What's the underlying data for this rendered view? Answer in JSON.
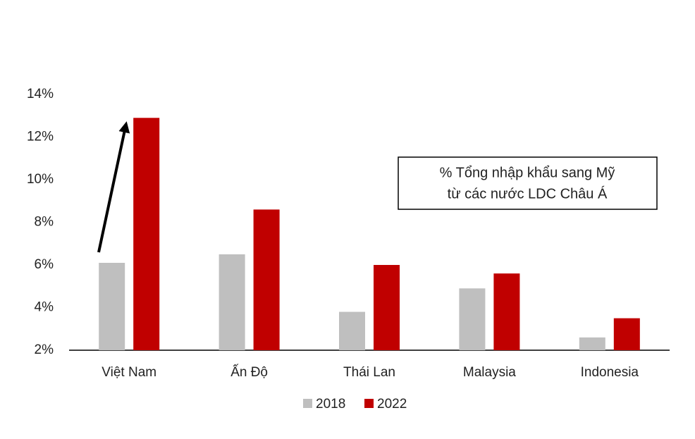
{
  "chart_data": {
    "type": "bar",
    "categories": [
      "Việt Nam",
      "Ấn Độ",
      "Thái Lan",
      "Malaysia",
      "Indonesia"
    ],
    "series": [
      {
        "name": "2018",
        "color": "#bfbfbf",
        "values": [
          6.1,
          6.5,
          3.8,
          4.9,
          2.6
        ]
      },
      {
        "name": "2022",
        "color": "#c00000",
        "values": [
          12.9,
          8.6,
          6.0,
          5.6,
          3.5
        ]
      }
    ],
    "ylim": [
      2,
      14
    ],
    "yticks": [
      {
        "value": 2,
        "label": "2%"
      },
      {
        "value": 4,
        "label": "4%"
      },
      {
        "value": 6,
        "label": "6%"
      },
      {
        "value": 8,
        "label": "8%"
      },
      {
        "value": 10,
        "label": "10%"
      },
      {
        "value": 12,
        "label": "12%"
      },
      {
        "value": 14,
        "label": "14%"
      }
    ],
    "grid": false,
    "legend": "bottom",
    "annotation": [
      "% Tổng nhập khẩu sang Mỹ",
      "từ các nước LDC Châu Á"
    ]
  }
}
